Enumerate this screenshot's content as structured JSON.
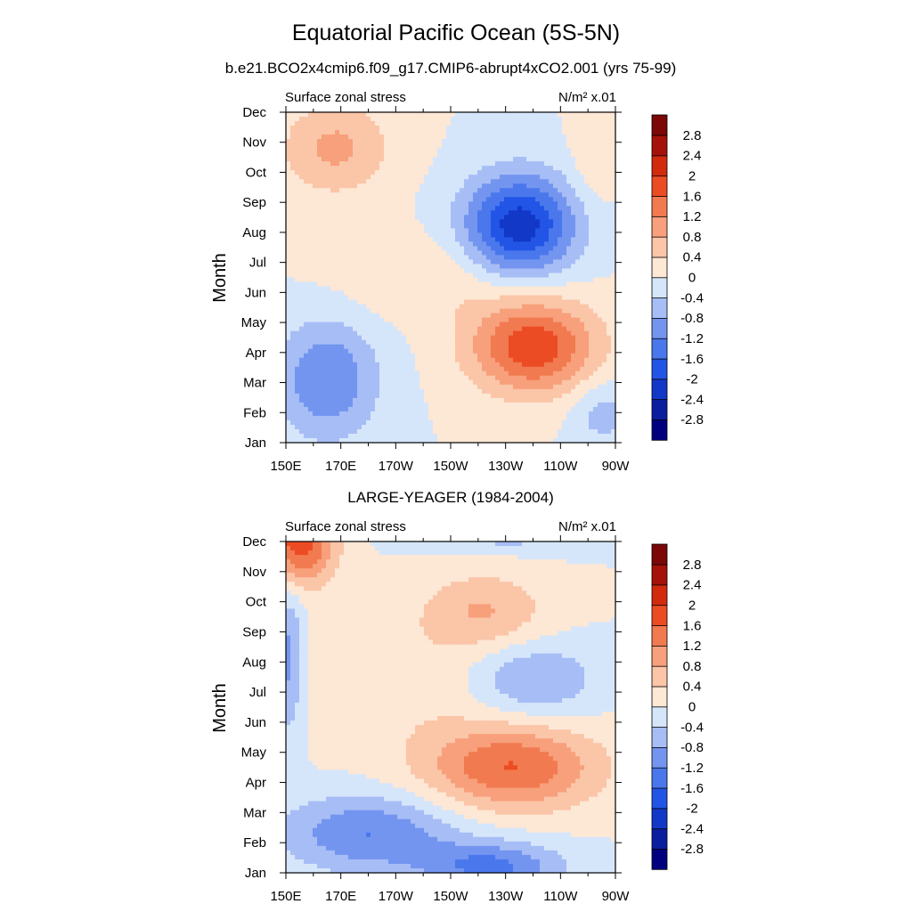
{
  "figure": {
    "title": "Equatorial Pacific Ocean (5S-5N)",
    "subtitle": "b.e21.BCO2x4cmip6.f09_g17.CMIP6-abrupt4xCO2.001 (yrs 75-99)"
  },
  "colorbar": {
    "levels": [
      -2.8,
      -2.4,
      -2,
      -1.6,
      -1.2,
      -0.8,
      -0.4,
      0,
      0.4,
      0.8,
      1.2,
      1.6,
      2,
      2.4,
      2.8
    ],
    "labels": [
      "-2.8",
      "-2.4",
      "-2",
      "-1.6",
      "-1.2",
      "-0.8",
      "-0.4",
      "0",
      "0.4",
      "0.8",
      "1.2",
      "1.6",
      "2",
      "2.4",
      "2.8"
    ],
    "colors": [
      "#00007f",
      "#0a1e9e",
      "#1238c8",
      "#2255e6",
      "#4a78ec",
      "#7395f0",
      "#a7bdf5",
      "#d5e6fb",
      "#fde7d5",
      "#fbc5a8",
      "#f7a07b",
      "#f27a50",
      "#ec4c24",
      "#d22a0d",
      "#a5120a",
      "#7b0707"
    ]
  },
  "chart_data": [
    {
      "type": "heatmap",
      "title": "",
      "left_label": "Surface zonal stress",
      "right_label": "N/m² x.01",
      "ylabel": "Month",
      "xlabel": "",
      "x_ticks": [
        "150E",
        "170E",
        "170W",
        "150W",
        "130W",
        "110W",
        "90W"
      ],
      "y_ticks": [
        "Jan",
        "Feb",
        "Mar",
        "Apr",
        "May",
        "Jun",
        "Jul",
        "Aug",
        "Sep",
        "Oct",
        "Nov",
        "Dec"
      ],
      "x_longitudes_east": [
        150,
        170,
        190,
        210,
        230,
        250,
        270
      ],
      "y_month_index": [
        0,
        1,
        2,
        3,
        4,
        5,
        6,
        7,
        8,
        9,
        10,
        11
      ],
      "features": [
        {
          "lon": 235,
          "mon": 7.2,
          "val": -2.3,
          "sx": 14,
          "sy": 1.2
        },
        {
          "lon": 240,
          "mon": 3.2,
          "val": 1.9,
          "sx": 16,
          "sy": 1.1
        },
        {
          "lon": 165,
          "mon": 2.1,
          "val": -1.2,
          "sx": 13,
          "sy": 1.4
        },
        {
          "lon": 168,
          "mon": 9.8,
          "val": 0.9,
          "sx": 14,
          "sy": 1.1
        },
        {
          "lon": 265,
          "mon": 1.0,
          "val": -0.6,
          "sx": 8,
          "sy": 0.8
        },
        {
          "lon": 205,
          "mon": 5.5,
          "val": 0.4,
          "sx": 25,
          "sy": 1.0
        },
        {
          "lon": 263,
          "mon": 9.4,
          "val": 0.4,
          "sx": 6,
          "sy": 1.0
        }
      ]
    },
    {
      "type": "heatmap",
      "title": "LARGE-YEAGER (1984-2004)",
      "left_label": "Surface zonal stress",
      "right_label": "N/m² x.01",
      "ylabel": "Month",
      "xlabel": "",
      "x_ticks": [
        "150E",
        "170E",
        "170W",
        "150W",
        "130W",
        "110W",
        "90W"
      ],
      "y_ticks": [
        "Jan",
        "Feb",
        "Mar",
        "Apr",
        "May",
        "Jun",
        "Jul",
        "Aug",
        "Sep",
        "Oct",
        "Nov",
        "Dec"
      ],
      "x_longitudes_east": [
        150,
        170,
        190,
        210,
        230,
        250,
        270
      ],
      "y_month_index": [
        0,
        1,
        2,
        3,
        4,
        5,
        6,
        7,
        8,
        9,
        10,
        11
      ],
      "features": [
        {
          "lon": 155,
          "mon": 11.0,
          "val": 1.9,
          "sx": 9,
          "sy": 1.0
        },
        {
          "lon": 232,
          "mon": 3.5,
          "val": 1.6,
          "sx": 22,
          "sy": 1.0
        },
        {
          "lon": 222,
          "mon": 8.7,
          "val": 0.8,
          "sx": 16,
          "sy": 0.9
        },
        {
          "lon": 180,
          "mon": 1.3,
          "val": -1.2,
          "sx": 22,
          "sy": 0.9
        },
        {
          "lon": 225,
          "mon": 0.2,
          "val": -1.3,
          "sx": 18,
          "sy": 0.6
        },
        {
          "lon": 230,
          "mon": 11.6,
          "val": -1.1,
          "sx": 22,
          "sy": 0.5
        },
        {
          "lon": 240,
          "mon": 6.4,
          "val": -0.9,
          "sx": 16,
          "sy": 0.9
        },
        {
          "lon": 151,
          "mon": 7.0,
          "val": -1.0,
          "sx": 4,
          "sy": 1.8
        },
        {
          "lon": 190,
          "mon": 6.3,
          "val": 0.35,
          "sx": 30,
          "sy": 1.5
        }
      ]
    }
  ]
}
